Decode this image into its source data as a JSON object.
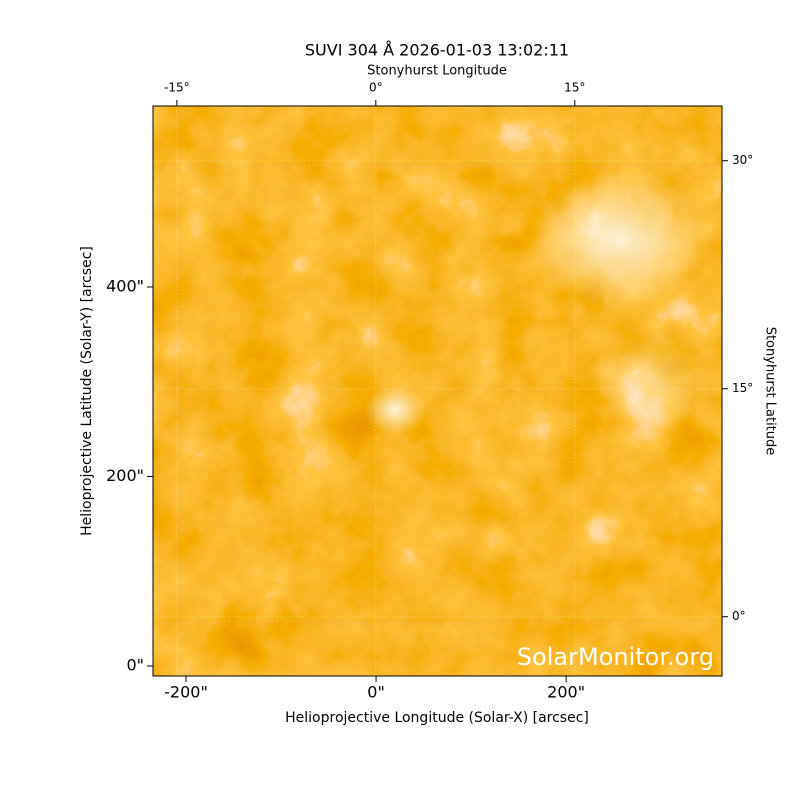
{
  "chart_data": {
    "type": "image",
    "title": "SUVI 304 Å 2026-01-03 13:02:11",
    "x_label": "Helioprojective Longitude (Solar-X) [arcsec]",
    "y_label": "Helioprojective Latitude (Solar-Y) [arcsec]",
    "x2_label": "Stonyhurst Longitude",
    "y2_label": "Stonyhurst Latitude",
    "watermark": "SolarMonitor.org",
    "xlim": [
      -234.7,
      364
    ],
    "ylim": [
      -10.6,
      591
    ],
    "xticks": [
      {
        "value": -200,
        "label": "-200\""
      },
      {
        "value": 0,
        "label": "0\""
      },
      {
        "value": 200,
        "label": "200\""
      }
    ],
    "yticks": [
      {
        "value": 0,
        "label": "0\""
      },
      {
        "value": 200,
        "label": "200\""
      },
      {
        "value": 400,
        "label": "400\""
      }
    ],
    "x2lim": [
      -16.8,
      26.1
    ],
    "x2ticks": [
      {
        "value": -15,
        "label": "-15°"
      },
      {
        "value": 0,
        "label": "0°"
      },
      {
        "value": 15,
        "label": "15°"
      }
    ],
    "y2lim": [
      -3.9,
      33.6
    ],
    "y2ticks": [
      {
        "value": 0,
        "label": "0°"
      },
      {
        "value": 15,
        "label": "15°"
      },
      {
        "value": 30,
        "label": "30°"
      }
    ],
    "grid": true
  }
}
